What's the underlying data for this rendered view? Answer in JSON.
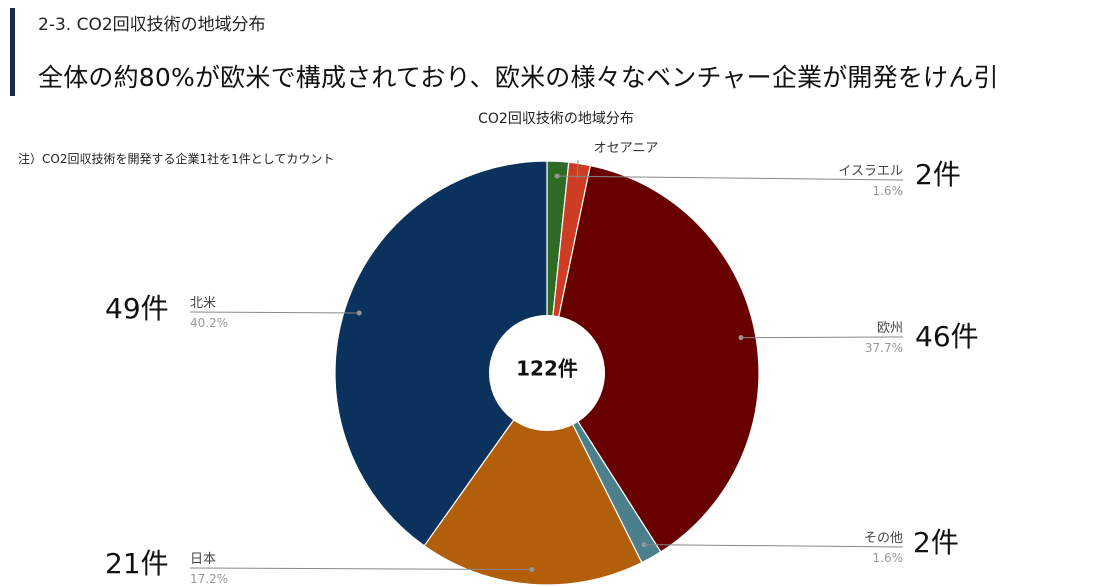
{
  "header": {
    "section_title": "2-3. CO2回収技術の地域分布",
    "headline": "全体の約80%が欧米で構成されており、欧米の様々なベンチャー企業が開発をけん引"
  },
  "note": "注）CO2回収技術を開発する企業1社を1件としてカウント",
  "colors": {
    "accent_bar": "#1c2a4a",
    "israel": "#2e6b24",
    "oceania": "#cc3d24",
    "europe": "#680000",
    "other": "#4c7f8c",
    "japan": "#b35e0a",
    "north_america": "#0a325c"
  },
  "chart_data": {
    "type": "pie",
    "style": "donut",
    "title": "CO2回収技術の地域分布",
    "center_label": "122件",
    "total": 122,
    "slices": [
      {
        "key": "israel",
        "label": "イスラエル",
        "value": 2,
        "percent_label": "1.6%",
        "count_label": "2件",
        "color": "#2e6b24"
      },
      {
        "key": "oceania",
        "label": "オセアニア",
        "value": 2,
        "percent_label": "",
        "count_label": "",
        "color": "#cc3d24"
      },
      {
        "key": "europe",
        "label": "欧州",
        "value": 46,
        "percent_label": "37.7%",
        "count_label": "46件",
        "color": "#680000"
      },
      {
        "key": "other",
        "label": "その他",
        "value": 2,
        "percent_label": "1.6%",
        "count_label": "2件",
        "color": "#4c7f8c"
      },
      {
        "key": "japan",
        "label": "日本",
        "value": 21,
        "percent_label": "17.2%",
        "count_label": "21件",
        "color": "#b35e0a"
      },
      {
        "key": "north_america",
        "label": "北米",
        "value": 49,
        "percent_label": "40.2%",
        "count_label": "49件",
        "color": "#0a325c"
      }
    ]
  }
}
